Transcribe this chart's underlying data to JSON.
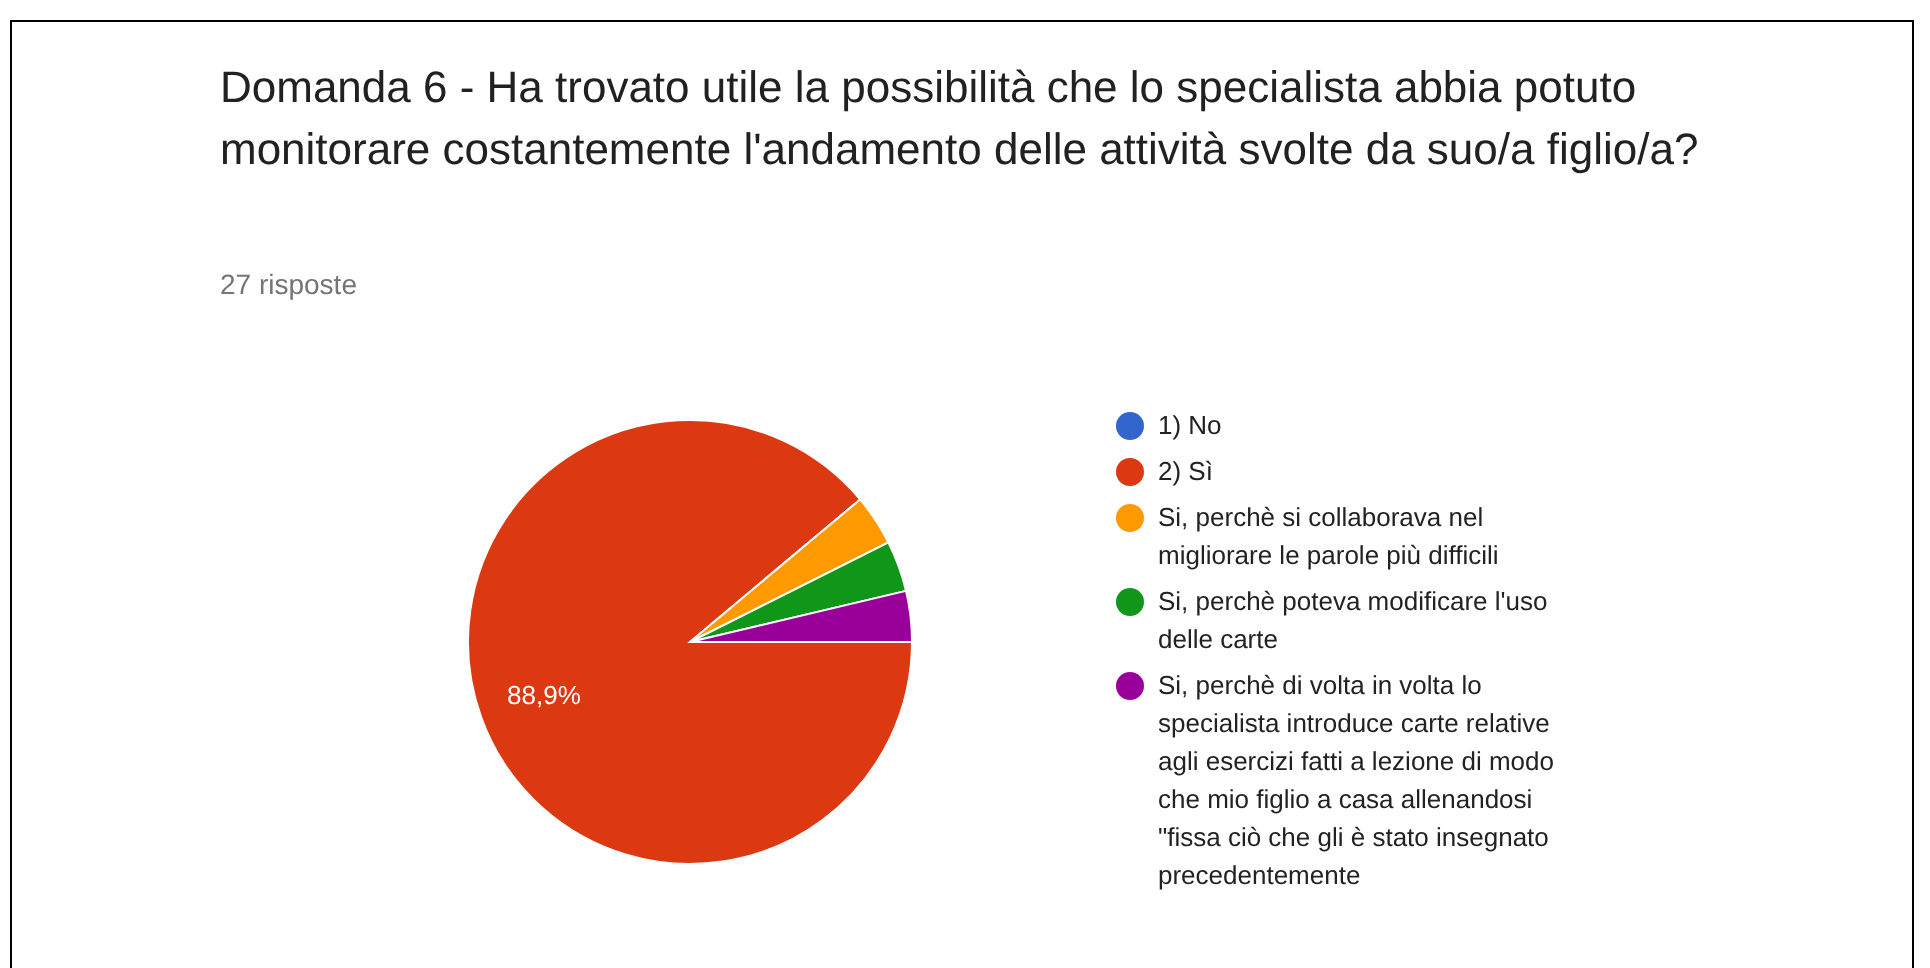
{
  "chart_data": {
    "type": "pie",
    "title": "Domanda 6 - Ha trovato utile la possibilità che lo specialista abbia potuto monitorare costantemente l'andamento delle attività svolte da suo/a figlio/a?",
    "subtitle": "27 risposte",
    "categories": [
      "1) No",
      "2) Sì",
      "Si, perchè si collaborava nel migliorare le parole più difficili",
      "Si, perchè poteva modificare l'uso delle carte",
      "Si, perchè di volta in volta lo specialista introduce carte relative agli esercizi fatti a lezione di modo che mio figlio a casa allenandosi \"fissa ciò che gli è stato insegnato precedentemente"
    ],
    "values": [
      0,
      88.9,
      3.7,
      3.7,
      3.7
    ],
    "colors": [
      "#3366cc",
      "#dc3912",
      "#ff9900",
      "#109618",
      "#990099"
    ],
    "value_labels": [
      null,
      "88,9%",
      null,
      null,
      null
    ],
    "legend": "right"
  }
}
